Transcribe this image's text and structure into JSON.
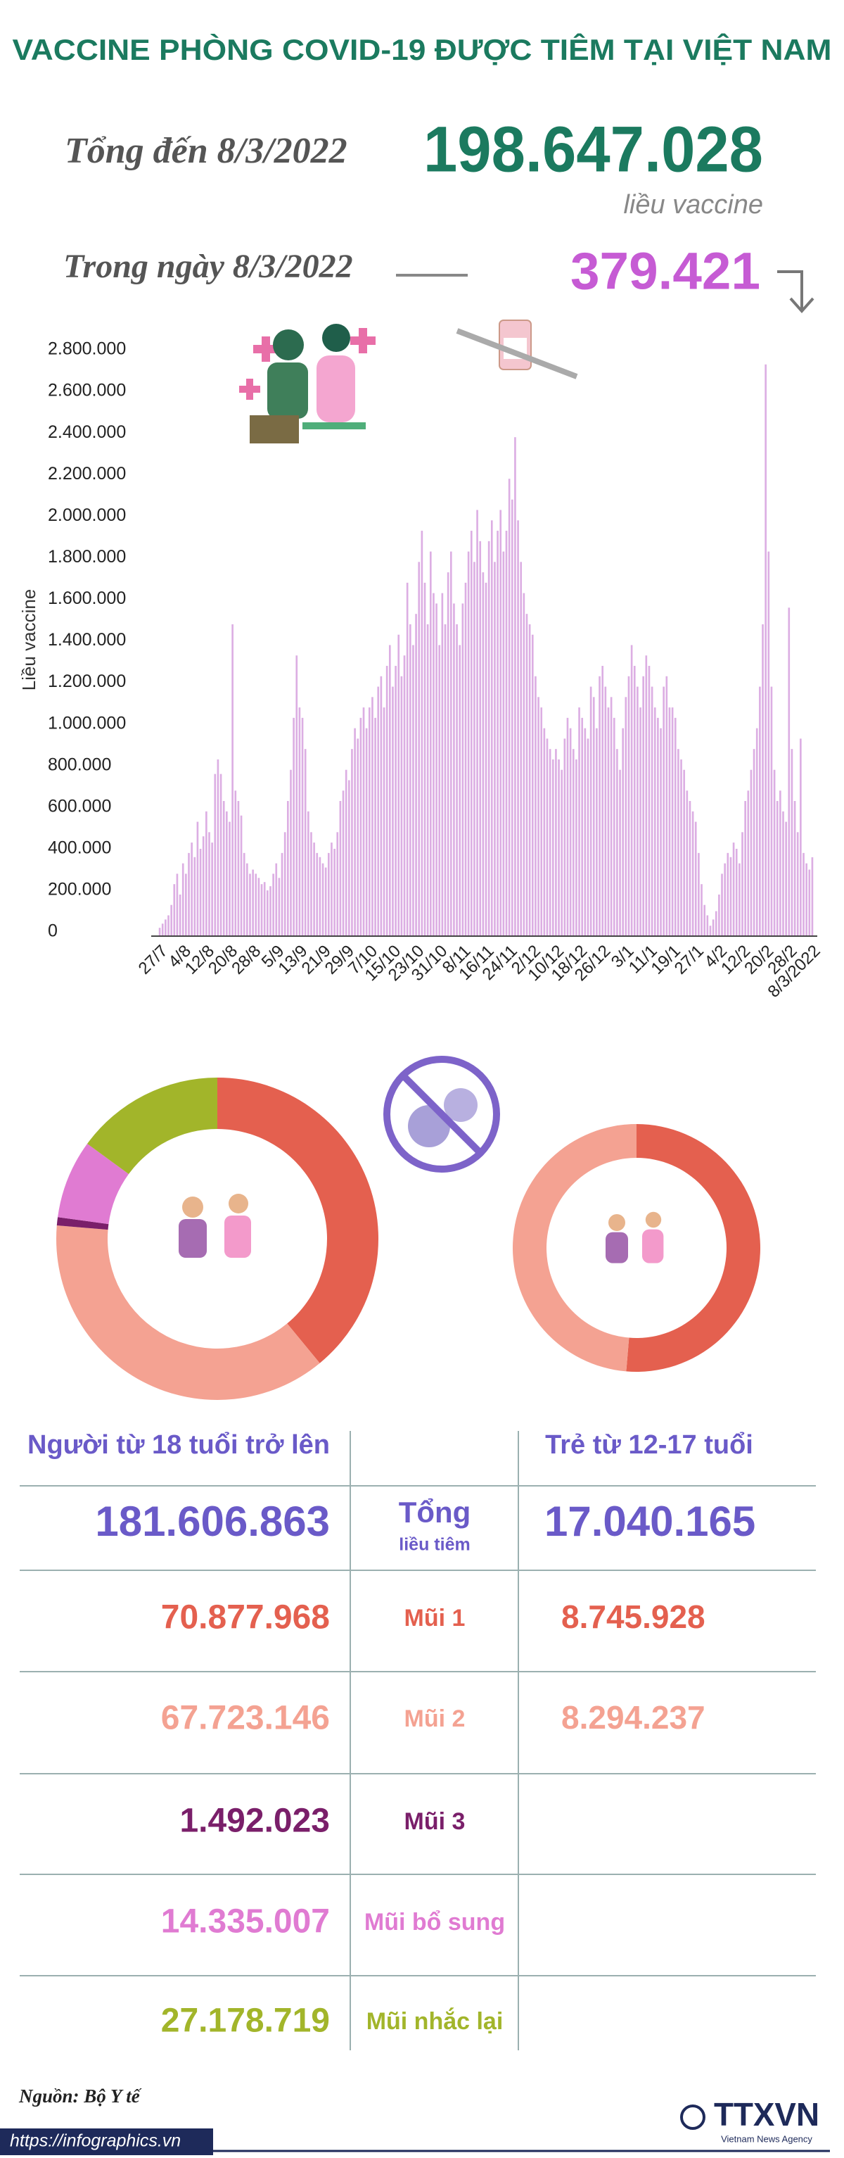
{
  "header": {
    "title": "VACCINE PHÒNG COVID-19 ĐƯỢC TIÊM TẠI VIỆT NAM",
    "total_label": "Tổng đến 8/3/2022",
    "total_value": "198.647.028",
    "total_unit": "liều vaccine",
    "day_label": "Trong ngày 8/3/2022",
    "day_value": "379.421"
  },
  "chart_data": [
    {
      "type": "bar",
      "y_label": "Liều vaccine",
      "color": "#dcaee3",
      "grid": false,
      "ylim": [
        0,
        2800000
      ],
      "yticks": [
        0,
        {
          "value": 200000,
          "label": "200.000"
        },
        {
          "value": 400000,
          "label": "400.000"
        },
        {
          "value": 600000,
          "label": "600.000"
        },
        {
          "value": 800000,
          "label": "800.000"
        },
        {
          "value": 1000000,
          "label": "1.000.000"
        },
        {
          "value": 1200000,
          "label": "1.200.000"
        },
        {
          "value": 1400000,
          "label": "1.400.000"
        },
        {
          "value": 1600000,
          "label": "1.600.000"
        },
        {
          "value": 1800000,
          "label": "1.800.000"
        },
        {
          "value": 2000000,
          "label": "2.000.000"
        },
        {
          "value": 2200000,
          "label": "2.200.000"
        },
        {
          "value": 2400000,
          "label": "2.400.000"
        },
        {
          "value": 2600000,
          "label": "2.600.000"
        },
        {
          "value": 2800000,
          "label": "2.800.000"
        }
      ],
      "categories": [
        "27/7",
        null,
        null,
        null,
        null,
        null,
        null,
        null,
        "4/8",
        null,
        null,
        null,
        null,
        null,
        null,
        null,
        "12/8",
        null,
        null,
        null,
        null,
        null,
        null,
        null,
        "20/8",
        null,
        null,
        null,
        null,
        null,
        null,
        null,
        "28/8",
        null,
        null,
        null,
        null,
        null,
        null,
        null,
        "5/9",
        null,
        null,
        null,
        null,
        null,
        null,
        null,
        "13/9",
        null,
        null,
        null,
        null,
        null,
        null,
        null,
        "21/9",
        null,
        null,
        null,
        null,
        null,
        null,
        null,
        "29/9",
        null,
        null,
        null,
        null,
        null,
        null,
        null,
        "7/10",
        null,
        null,
        null,
        null,
        null,
        null,
        null,
        "15/10",
        null,
        null,
        null,
        null,
        null,
        null,
        null,
        "23/10",
        null,
        null,
        null,
        null,
        null,
        null,
        null,
        "31/10",
        null,
        null,
        null,
        null,
        null,
        null,
        null,
        "8/11",
        null,
        null,
        null,
        null,
        null,
        null,
        null,
        "16/11",
        null,
        null,
        null,
        null,
        null,
        null,
        null,
        "24/11",
        null,
        null,
        null,
        null,
        null,
        null,
        null,
        "2/12",
        null,
        null,
        null,
        null,
        null,
        null,
        null,
        "10/12",
        null,
        null,
        null,
        null,
        null,
        null,
        null,
        "18/12",
        null,
        null,
        null,
        null,
        null,
        null,
        null,
        "26/12",
        null,
        null,
        null,
        null,
        null,
        null,
        null,
        "3/1",
        null,
        null,
        null,
        null,
        null,
        null,
        null,
        "11/1",
        null,
        null,
        null,
        null,
        null,
        null,
        null,
        "19/1",
        null,
        null,
        null,
        null,
        null,
        null,
        null,
        "27/1",
        null,
        null,
        null,
        null,
        null,
        null,
        null,
        "4/2",
        null,
        null,
        null,
        null,
        null,
        null,
        null,
        "12/2",
        null,
        null,
        null,
        null,
        null,
        null,
        null,
        "20/2",
        null,
        null,
        null,
        null,
        null,
        null,
        null,
        "28/2",
        null,
        null,
        null,
        null,
        null,
        null,
        null,
        "8/3/2022"
      ],
      "values": [
        40000,
        60000,
        80000,
        100000,
        150000,
        250000,
        300000,
        200000,
        350000,
        300000,
        400000,
        450000,
        380000,
        550000,
        420000,
        480000,
        600000,
        500000,
        450000,
        780000,
        850000,
        780000,
        650000,
        600000,
        550000,
        1500000,
        700000,
        650000,
        580000,
        400000,
        350000,
        300000,
        320000,
        300000,
        280000,
        250000,
        260000,
        220000,
        240000,
        300000,
        350000,
        280000,
        400000,
        500000,
        650000,
        800000,
        1050000,
        1350000,
        1100000,
        1050000,
        900000,
        600000,
        500000,
        450000,
        400000,
        380000,
        350000,
        330000,
        400000,
        450000,
        420000,
        500000,
        650000,
        700000,
        800000,
        750000,
        900000,
        1000000,
        950000,
        1050000,
        1100000,
        1000000,
        1100000,
        1150000,
        1050000,
        1200000,
        1250000,
        1100000,
        1300000,
        1400000,
        1200000,
        1300000,
        1450000,
        1250000,
        1350000,
        1700000,
        1500000,
        1400000,
        1550000,
        1800000,
        1950000,
        1700000,
        1500000,
        1850000,
        1650000,
        1600000,
        1400000,
        1650000,
        1500000,
        1750000,
        1850000,
        1600000,
        1500000,
        1400000,
        1600000,
        1700000,
        1850000,
        1950000,
        1800000,
        2050000,
        1900000,
        1750000,
        1700000,
        1900000,
        2000000,
        1800000,
        1950000,
        2050000,
        1850000,
        1950000,
        2200000,
        2100000,
        2400000,
        2000000,
        1800000,
        1650000,
        1550000,
        1500000,
        1450000,
        1250000,
        1150000,
        1100000,
        1000000,
        950000,
        900000,
        850000,
        900000,
        850000,
        800000,
        950000,
        1050000,
        1000000,
        900000,
        850000,
        1100000,
        1050000,
        1000000,
        950000,
        1200000,
        1150000,
        1000000,
        1250000,
        1300000,
        1200000,
        1100000,
        1150000,
        1050000,
        900000,
        800000,
        1000000,
        1150000,
        1250000,
        1400000,
        1300000,
        1200000,
        1100000,
        1250000,
        1350000,
        1300000,
        1200000,
        1100000,
        1050000,
        1000000,
        1200000,
        1250000,
        1100000,
        1100000,
        1050000,
        900000,
        850000,
        800000,
        700000,
        650000,
        600000,
        550000,
        400000,
        250000,
        150000,
        100000,
        50000,
        80000,
        120000,
        200000,
        300000,
        350000,
        400000,
        380000,
        450000,
        420000,
        350000,
        500000,
        650000,
        700000,
        800000,
        900000,
        1000000,
        1200000,
        1500000,
        2750000,
        1850000,
        1200000,
        800000,
        650000,
        700000,
        600000,
        550000,
        1580000,
        900000,
        650000,
        500000,
        950000,
        400000,
        350000,
        320000,
        379421
      ]
    },
    {
      "type": "pie",
      "title": "Người từ 18 tuổi trở lên",
      "total": {
        "value": 181606863,
        "label": "181.606.863"
      },
      "categories": [
        "Mũi 1",
        "Mũi 2",
        "Mũi 3",
        "Mũi bổ sung",
        "Mũi nhắc lại"
      ],
      "values": [
        70877968,
        67723146,
        1492023,
        14335007,
        27178719
      ],
      "value_labels": [
        "70.877.968",
        "67.723.146",
        "1.492.023",
        "14.335.007",
        "27.178.719"
      ],
      "colors": [
        "#e4604f",
        "#f4a292",
        "#7a1f6a",
        "#e07bd2",
        "#a2b52a"
      ]
    },
    {
      "type": "pie",
      "title": "Trẻ từ 12-17 tuổi",
      "total": {
        "value": 17040165,
        "label": "17.040.165"
      },
      "values": [
        8745928,
        8294237
      ],
      "value_labels": [
        "8.745.928",
        "8.294.237"
      ],
      "colors": [
        "#e4604f",
        "#f4a292"
      ]
    }
  ],
  "table": {
    "total_label": "Tổng",
    "total_sublabel": "liều tiêm"
  },
  "footer": {
    "source": "Nguồn: Bộ Y tế",
    "url": "https://infographics.vn",
    "logo": "TTXVN",
    "logo_sub": "Vietnam News Agency"
  }
}
